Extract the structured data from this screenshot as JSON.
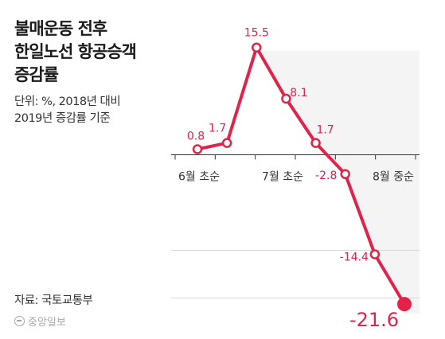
{
  "title_lines": [
    "불매운동 전후",
    "한일노선 항공승객",
    "증감률"
  ],
  "unit_lines": [
    "단위: %, 2018년 대비",
    "2019년 증감률 기준"
  ],
  "source": "자료: 국토교통부",
  "logo": "중앙일보",
  "colors": {
    "line": "#e3224a",
    "area": "#f4f4f4",
    "axis": "#333333",
    "grid": "#d6d6d6",
    "value_label": "#e3224a"
  },
  "chart_data": {
    "type": "line",
    "title": "불매운동 전후 한일노선 항공승객 증감률",
    "ylabel": "단위: %, 2018년 대비 2019년 증감률 기준",
    "tick_labels": [
      "6월 초순",
      "7월 초순",
      "8월 중순"
    ],
    "ylim": [
      -22.5,
      18
    ],
    "series": [
      {
        "values": [
          0.8,
          1.7,
          15.5,
          8.1,
          1.7,
          -2.8,
          -14.4,
          -21.6
        ],
        "labels": [
          "0.8",
          "1.7",
          "15.5",
          "8.1",
          "1.7",
          "-2.8",
          "-14.4",
          "-21.6"
        ]
      }
    ]
  }
}
